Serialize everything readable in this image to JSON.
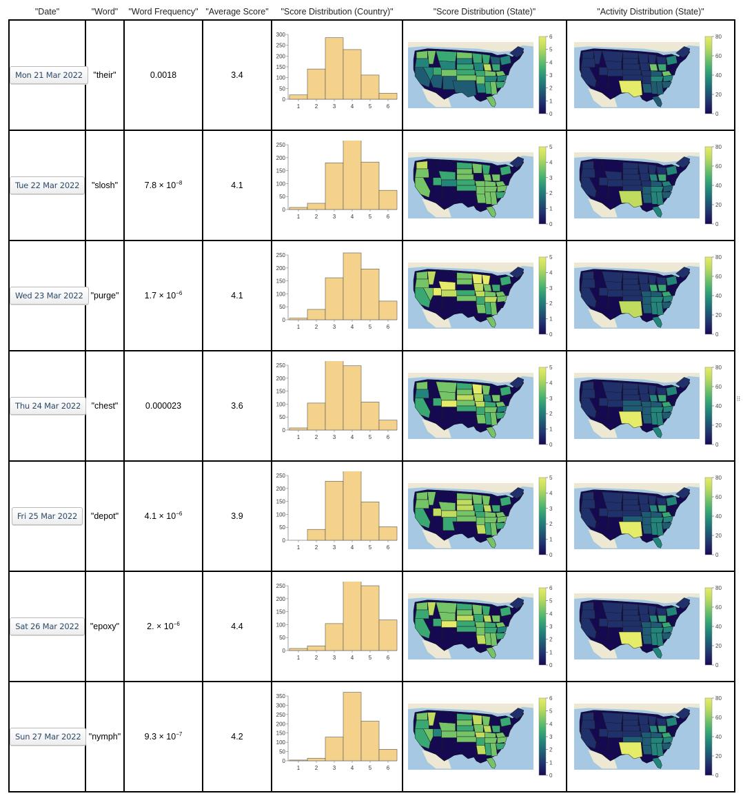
{
  "headers": {
    "date": "\"Date\"",
    "word": "\"Word\"",
    "freq": "\"Word Frequency\"",
    "avg": "\"Average Score\"",
    "country": "\"Score Distribution (Country)\"",
    "state": "\"Score Distribution (State)\"",
    "activity": "\"Activity Distribution (State)\""
  },
  "colors": {
    "bar_fill": "#f5d28c",
    "map_ocean": "#a6c8e3",
    "map_land": "#ece8d3",
    "viridis_low": "#150a52",
    "viridis_high": "#e2ec6a"
  },
  "rows": [
    {
      "date": "Mon 21 Mar 2022",
      "word": "\"their\"",
      "freq_mant": "0.0018",
      "freq_exp": "",
      "avg": "3.4",
      "hist": {
        "ylabels": [
          "300",
          "250",
          "200",
          "150",
          "100",
          "50",
          "0"
        ],
        "ymax": 300,
        "values": [
          20,
          140,
          285,
          230,
          112,
          28
        ]
      },
      "score_scale": [
        "6",
        "5",
        "4",
        "3",
        "2",
        "1",
        "0"
      ],
      "activity_scale": [
        "80",
        "60",
        "40",
        "20",
        "0"
      ]
    },
    {
      "date": "Tue 22 Mar 2022",
      "word": "\"slosh\"",
      "freq_mant": "7.8 × 10",
      "freq_exp": "−8",
      "avg": "4.1",
      "hist": {
        "ylabels": [
          "250",
          "200",
          "150",
          "100",
          "50",
          "0"
        ],
        "ymax": 250,
        "values": [
          8,
          24,
          180,
          290,
          183,
          74
        ]
      },
      "score_scale": [
        "5",
        "4",
        "3",
        "2",
        "1",
        "0"
      ],
      "activity_scale": [
        "80",
        "60",
        "40",
        "20",
        "0"
      ]
    },
    {
      "date": "Wed 23 Mar 2022",
      "word": "\"purge\"",
      "freq_mant": "1.7 × 10",
      "freq_exp": "−6",
      "avg": "4.1",
      "hist": {
        "ylabels": [
          "250",
          "200",
          "150",
          "100",
          "50",
          "0"
        ],
        "ymax": 250,
        "values": [
          6,
          40,
          162,
          258,
          196,
          72
        ]
      },
      "score_scale": [
        "5",
        "4",
        "3",
        "2",
        "1",
        "0"
      ],
      "activity_scale": [
        "80",
        "60",
        "40",
        "20",
        "0"
      ]
    },
    {
      "date": "Thu 24 Mar 2022",
      "word": "\"chest\"",
      "freq_mant": "0.000023",
      "freq_exp": "",
      "avg": "3.6",
      "hist": {
        "ylabels": [
          "250",
          "200",
          "150",
          "100",
          "50",
          "0"
        ],
        "ymax": 250,
        "values": [
          8,
          104,
          280,
          248,
          108,
          38
        ]
      },
      "score_scale": [
        "5",
        "4",
        "3",
        "2",
        "1",
        "0"
      ],
      "activity_scale": [
        "80",
        "60",
        "40",
        "20",
        "0"
      ]
    },
    {
      "date": "Fri 25 Mar 2022",
      "word": "\"depot\"",
      "freq_mant": "4.1 × 10",
      "freq_exp": "−6",
      "avg": "3.9",
      "hist": {
        "ylabels": [
          "250",
          "200",
          "150",
          "100",
          "50",
          "0"
        ],
        "ymax": 250,
        "values": [
          0,
          42,
          228,
          268,
          148,
          52
        ]
      },
      "score_scale": [
        "5",
        "4",
        "3",
        "2",
        "1",
        "0"
      ],
      "activity_scale": [
        "80",
        "60",
        "40",
        "20",
        "0"
      ]
    },
    {
      "date": "Sat 26 Mar 2022",
      "word": "\"epoxy\"",
      "freq_mant": "2. × 10",
      "freq_exp": "−6",
      "avg": "4.4",
      "hist": {
        "ylabels": [
          "250",
          "200",
          "150",
          "100",
          "50",
          "0"
        ],
        "ymax": 250,
        "values": [
          8,
          18,
          104,
          268,
          250,
          118
        ]
      },
      "score_scale": [
        "6",
        "5",
        "4",
        "3",
        "2",
        "1",
        "0"
      ],
      "activity_scale": [
        "80",
        "60",
        "40",
        "20",
        "0"
      ]
    },
    {
      "date": "Sun 27 Mar 2022",
      "word": "\"nymph\"",
      "freq_mant": "9.3 × 10",
      "freq_exp": "−7",
      "avg": "4.2",
      "hist": {
        "ylabels": [
          "350",
          "300",
          "250",
          "200",
          "150",
          "100",
          "50",
          "0"
        ],
        "ymax": 350,
        "values": [
          4,
          14,
          128,
          370,
          214,
          62
        ]
      },
      "score_scale": [
        "6",
        "5",
        "4",
        "3",
        "2",
        "1",
        "0"
      ],
      "activity_scale": [
        "80",
        "60",
        "40",
        "20",
        "0"
      ]
    }
  ],
  "hist_xlabels": [
    "1",
    "2",
    "3",
    "4",
    "5",
    "6"
  ]
}
